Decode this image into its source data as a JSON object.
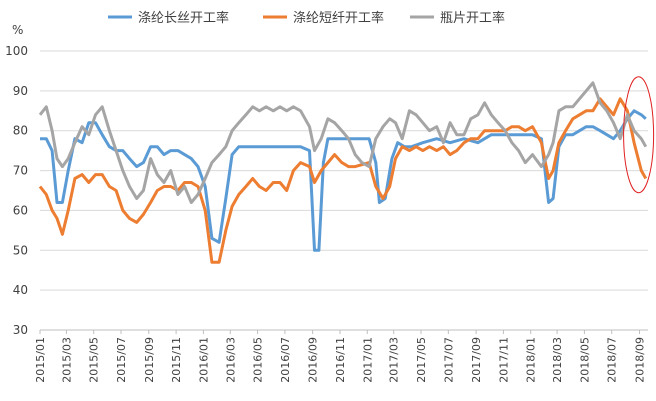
{
  "chart_data": {
    "type": "line",
    "ylabel": "%",
    "ylim": [
      30,
      100
    ],
    "yticks": [
      30,
      40,
      50,
      60,
      70,
      80,
      90,
      100
    ],
    "xtick_labels": [
      "2015/01",
      "2015/03",
      "2015/05",
      "2015/07",
      "2015/09",
      "2015/11",
      "2016/01",
      "2016/03",
      "2016/05",
      "2016/07",
      "2016/09",
      "2016/11",
      "2017/01",
      "2017/03",
      "2017/05",
      "2017/07",
      "2017/09",
      "2017/11",
      "2018/01",
      "2018/03",
      "2018/05",
      "2018/07",
      "2018/09"
    ],
    "x_start": "2015-01",
    "x_end": "2018-09",
    "grid": "horizontal",
    "legend_position": "top",
    "highlight": {
      "shape": "ellipse",
      "color": "#e02020",
      "x": [
        "2018-08",
        "2018-09"
      ]
    },
    "series": [
      {
        "name": "涤纶长丝开工率",
        "color": "#5b9bd5",
        "points": [
          [
            "2015-01",
            78
          ],
          [
            "2015-01-15",
            78
          ],
          [
            "2015-01-28",
            75
          ],
          [
            "2015-02-08",
            62
          ],
          [
            "2015-02-20",
            62
          ],
          [
            "2015-03-05",
            70
          ],
          [
            "2015-03-20",
            78
          ],
          [
            "2015-04-05",
            77
          ],
          [
            "2015-04-20",
            82
          ],
          [
            "2015-05-05",
            82
          ],
          [
            "2015-05-20",
            79
          ],
          [
            "2015-06-05",
            76
          ],
          [
            "2015-06-20",
            75
          ],
          [
            "2015-07-05",
            75
          ],
          [
            "2015-07-20",
            73
          ],
          [
            "2015-08-05",
            71
          ],
          [
            "2015-08-20",
            72
          ],
          [
            "2015-09-05",
            76
          ],
          [
            "2015-09-20",
            76
          ],
          [
            "2015-10-05",
            74
          ],
          [
            "2015-10-20",
            75
          ],
          [
            "2015-11-05",
            75
          ],
          [
            "2015-11-20",
            74
          ],
          [
            "2015-12-05",
            73
          ],
          [
            "2015-12-20",
            71
          ],
          [
            "2016-01-05",
            66
          ],
          [
            "2016-01-20",
            53
          ],
          [
            "2016-02-05",
            52
          ],
          [
            "2016-02-20",
            63
          ],
          [
            "2016-03-05",
            74
          ],
          [
            "2016-03-20",
            76
          ],
          [
            "2016-04-05",
            76
          ],
          [
            "2016-05-05",
            76
          ],
          [
            "2016-06-05",
            76
          ],
          [
            "2016-07-05",
            76
          ],
          [
            "2016-08-05",
            76
          ],
          [
            "2016-08-25",
            75
          ],
          [
            "2016-09-05",
            50
          ],
          [
            "2016-09-15",
            50
          ],
          [
            "2016-09-25",
            72
          ],
          [
            "2016-10-05",
            78
          ],
          [
            "2016-11-05",
            78
          ],
          [
            "2016-12-05",
            78
          ],
          [
            "2017-01-05",
            78
          ],
          [
            "2017-01-20",
            72
          ],
          [
            "2017-01-28",
            62
          ],
          [
            "2017-02-10",
            63
          ],
          [
            "2017-02-25",
            73
          ],
          [
            "2017-03-10",
            77
          ],
          [
            "2017-03-25",
            76
          ],
          [
            "2017-04-10",
            76
          ],
          [
            "2017-05-05",
            77
          ],
          [
            "2017-06-05",
            78
          ],
          [
            "2017-07-05",
            77
          ],
          [
            "2017-08-05",
            78
          ],
          [
            "2017-09-05",
            77
          ],
          [
            "2017-10-05",
            79
          ],
          [
            "2017-11-05",
            79
          ],
          [
            "2017-12-05",
            79
          ],
          [
            "2018-01-05",
            79
          ],
          [
            "2018-01-25",
            78
          ],
          [
            "2018-02-10",
            62
          ],
          [
            "2018-02-20",
            63
          ],
          [
            "2018-03-05",
            76
          ],
          [
            "2018-03-20",
            79
          ],
          [
            "2018-04-05",
            79
          ],
          [
            "2018-04-20",
            80
          ],
          [
            "2018-05-05",
            81
          ],
          [
            "2018-05-20",
            81
          ],
          [
            "2018-06-05",
            80
          ],
          [
            "2018-06-20",
            79
          ],
          [
            "2018-07-05",
            78
          ],
          [
            "2018-07-20",
            80
          ],
          [
            "2018-08-05",
            83
          ],
          [
            "2018-08-20",
            85
          ],
          [
            "2018-09-05",
            84
          ],
          [
            "2018-09-15",
            83
          ]
        ]
      },
      {
        "name": "涤纶短纤开工率",
        "color": "#ed7d31",
        "points": [
          [
            "2015-01",
            66
          ],
          [
            "2015-01-15",
            64
          ],
          [
            "2015-01-28",
            60
          ],
          [
            "2015-02-08",
            58
          ],
          [
            "2015-02-20",
            54
          ],
          [
            "2015-03-05",
            60
          ],
          [
            "2015-03-20",
            68
          ],
          [
            "2015-04-05",
            69
          ],
          [
            "2015-04-20",
            67
          ],
          [
            "2015-05-05",
            69
          ],
          [
            "2015-05-20",
            69
          ],
          [
            "2015-06-05",
            66
          ],
          [
            "2015-06-20",
            65
          ],
          [
            "2015-07-05",
            60
          ],
          [
            "2015-07-20",
            58
          ],
          [
            "2015-08-05",
            57
          ],
          [
            "2015-08-20",
            59
          ],
          [
            "2015-09-05",
            62
          ],
          [
            "2015-09-20",
            65
          ],
          [
            "2015-10-05",
            66
          ],
          [
            "2015-10-20",
            66
          ],
          [
            "2015-11-05",
            65
          ],
          [
            "2015-11-20",
            67
          ],
          [
            "2015-12-05",
            67
          ],
          [
            "2015-12-20",
            66
          ],
          [
            "2016-01-05",
            60
          ],
          [
            "2016-01-20",
            47
          ],
          [
            "2016-02-05",
            47
          ],
          [
            "2016-02-20",
            55
          ],
          [
            "2016-03-05",
            61
          ],
          [
            "2016-03-20",
            64
          ],
          [
            "2016-04-05",
            66
          ],
          [
            "2016-04-20",
            68
          ],
          [
            "2016-05-05",
            66
          ],
          [
            "2016-05-20",
            65
          ],
          [
            "2016-06-05",
            67
          ],
          [
            "2016-06-20",
            67
          ],
          [
            "2016-07-05",
            65
          ],
          [
            "2016-07-20",
            70
          ],
          [
            "2016-08-05",
            72
          ],
          [
            "2016-08-25",
            71
          ],
          [
            "2016-09-05",
            67
          ],
          [
            "2016-09-20",
            70
          ],
          [
            "2016-10-05",
            72
          ],
          [
            "2016-10-20",
            74
          ],
          [
            "2016-11-05",
            72
          ],
          [
            "2016-11-20",
            71
          ],
          [
            "2016-12-05",
            71
          ],
          [
            "2017-01-05",
            72
          ],
          [
            "2017-01-20",
            66
          ],
          [
            "2017-02-05",
            63
          ],
          [
            "2017-02-20",
            66
          ],
          [
            "2017-03-05",
            73
          ],
          [
            "2017-03-20",
            76
          ],
          [
            "2017-04-05",
            75
          ],
          [
            "2017-04-20",
            76
          ],
          [
            "2017-05-05",
            75
          ],
          [
            "2017-05-20",
            76
          ],
          [
            "2017-06-05",
            75
          ],
          [
            "2017-06-20",
            76
          ],
          [
            "2017-07-05",
            74
          ],
          [
            "2017-07-20",
            75
          ],
          [
            "2017-08-05",
            77
          ],
          [
            "2017-08-20",
            78
          ],
          [
            "2017-09-05",
            78
          ],
          [
            "2017-09-20",
            80
          ],
          [
            "2017-10-05",
            80
          ],
          [
            "2017-10-20",
            80
          ],
          [
            "2017-11-05",
            80
          ],
          [
            "2017-11-20",
            81
          ],
          [
            "2017-12-05",
            81
          ],
          [
            "2017-12-20",
            80
          ],
          [
            "2018-01-05",
            81
          ],
          [
            "2018-01-25",
            77
          ],
          [
            "2018-02-10",
            68
          ],
          [
            "2018-02-20",
            70
          ],
          [
            "2018-03-05",
            77
          ],
          [
            "2018-03-20",
            80
          ],
          [
            "2018-04-05",
            83
          ],
          [
            "2018-04-20",
            84
          ],
          [
            "2018-05-05",
            85
          ],
          [
            "2018-05-20",
            85
          ],
          [
            "2018-06-05",
            88
          ],
          [
            "2018-06-20",
            86
          ],
          [
            "2018-07-05",
            84
          ],
          [
            "2018-07-20",
            88
          ],
          [
            "2018-08-05",
            85
          ],
          [
            "2018-08-20",
            77
          ],
          [
            "2018-09-05",
            70
          ],
          [
            "2018-09-15",
            68
          ]
        ]
      },
      {
        "name": "瓶片开工率",
        "color": "#a5a5a5",
        "points": [
          [
            "2015-01",
            84
          ],
          [
            "2015-01-15",
            86
          ],
          [
            "2015-01-28",
            80
          ],
          [
            "2015-02-08",
            73
          ],
          [
            "2015-02-20",
            71
          ],
          [
            "2015-03-05",
            73
          ],
          [
            "2015-03-20",
            77
          ],
          [
            "2015-04-05",
            81
          ],
          [
            "2015-04-20",
            79
          ],
          [
            "2015-05-05",
            84
          ],
          [
            "2015-05-20",
            86
          ],
          [
            "2015-06-05",
            80
          ],
          [
            "2015-06-20",
            75
          ],
          [
            "2015-07-05",
            70
          ],
          [
            "2015-07-20",
            66
          ],
          [
            "2015-08-05",
            63
          ],
          [
            "2015-08-20",
            65
          ],
          [
            "2015-09-05",
            73
          ],
          [
            "2015-09-20",
            69
          ],
          [
            "2015-10-05",
            67
          ],
          [
            "2015-10-20",
            70
          ],
          [
            "2015-11-05",
            64
          ],
          [
            "2015-11-20",
            66
          ],
          [
            "2015-12-05",
            62
          ],
          [
            "2015-12-20",
            64
          ],
          [
            "2016-01-05",
            68
          ],
          [
            "2016-01-20",
            72
          ],
          [
            "2016-02-05",
            74
          ],
          [
            "2016-02-20",
            76
          ],
          [
            "2016-03-05",
            80
          ],
          [
            "2016-03-20",
            82
          ],
          [
            "2016-04-05",
            84
          ],
          [
            "2016-04-20",
            86
          ],
          [
            "2016-05-05",
            85
          ],
          [
            "2016-05-20",
            86
          ],
          [
            "2016-06-05",
            85
          ],
          [
            "2016-06-20",
            86
          ],
          [
            "2016-07-05",
            85
          ],
          [
            "2016-07-20",
            86
          ],
          [
            "2016-08-05",
            85
          ],
          [
            "2016-08-25",
            81
          ],
          [
            "2016-09-05",
            75
          ],
          [
            "2016-09-20",
            78
          ],
          [
            "2016-10-05",
            83
          ],
          [
            "2016-10-20",
            82
          ],
          [
            "2016-11-05",
            80
          ],
          [
            "2016-11-20",
            78
          ],
          [
            "2016-12-05",
            74
          ],
          [
            "2016-12-20",
            72
          ],
          [
            "2017-01-05",
            71
          ],
          [
            "2017-01-20",
            78
          ],
          [
            "2017-02-05",
            81
          ],
          [
            "2017-02-20",
            83
          ],
          [
            "2017-03-05",
            82
          ],
          [
            "2017-03-20",
            78
          ],
          [
            "2017-04-05",
            85
          ],
          [
            "2017-04-20",
            84
          ],
          [
            "2017-05-05",
            82
          ],
          [
            "2017-05-20",
            80
          ],
          [
            "2017-06-05",
            81
          ],
          [
            "2017-06-20",
            77
          ],
          [
            "2017-07-05",
            82
          ],
          [
            "2017-07-20",
            79
          ],
          [
            "2017-08-05",
            79
          ],
          [
            "2017-08-20",
            83
          ],
          [
            "2017-09-05",
            84
          ],
          [
            "2017-09-20",
            87
          ],
          [
            "2017-10-05",
            84
          ],
          [
            "2017-10-20",
            82
          ],
          [
            "2017-11-05",
            80
          ],
          [
            "2017-11-20",
            77
          ],
          [
            "2017-12-05",
            75
          ],
          [
            "2017-12-20",
            72
          ],
          [
            "2018-01-05",
            74
          ],
          [
            "2018-01-25",
            71
          ],
          [
            "2018-02-10",
            74
          ],
          [
            "2018-02-20",
            77
          ],
          [
            "2018-03-05",
            85
          ],
          [
            "2018-03-20",
            86
          ],
          [
            "2018-04-05",
            86
          ],
          [
            "2018-04-20",
            88
          ],
          [
            "2018-05-05",
            90
          ],
          [
            "2018-05-20",
            92
          ],
          [
            "2018-06-05",
            87
          ],
          [
            "2018-06-20",
            85
          ],
          [
            "2018-07-05",
            82
          ],
          [
            "2018-07-20",
            78
          ],
          [
            "2018-08-05",
            84
          ],
          [
            "2018-08-20",
            80
          ],
          [
            "2018-09-05",
            78
          ],
          [
            "2018-09-15",
            76
          ]
        ]
      }
    ]
  }
}
